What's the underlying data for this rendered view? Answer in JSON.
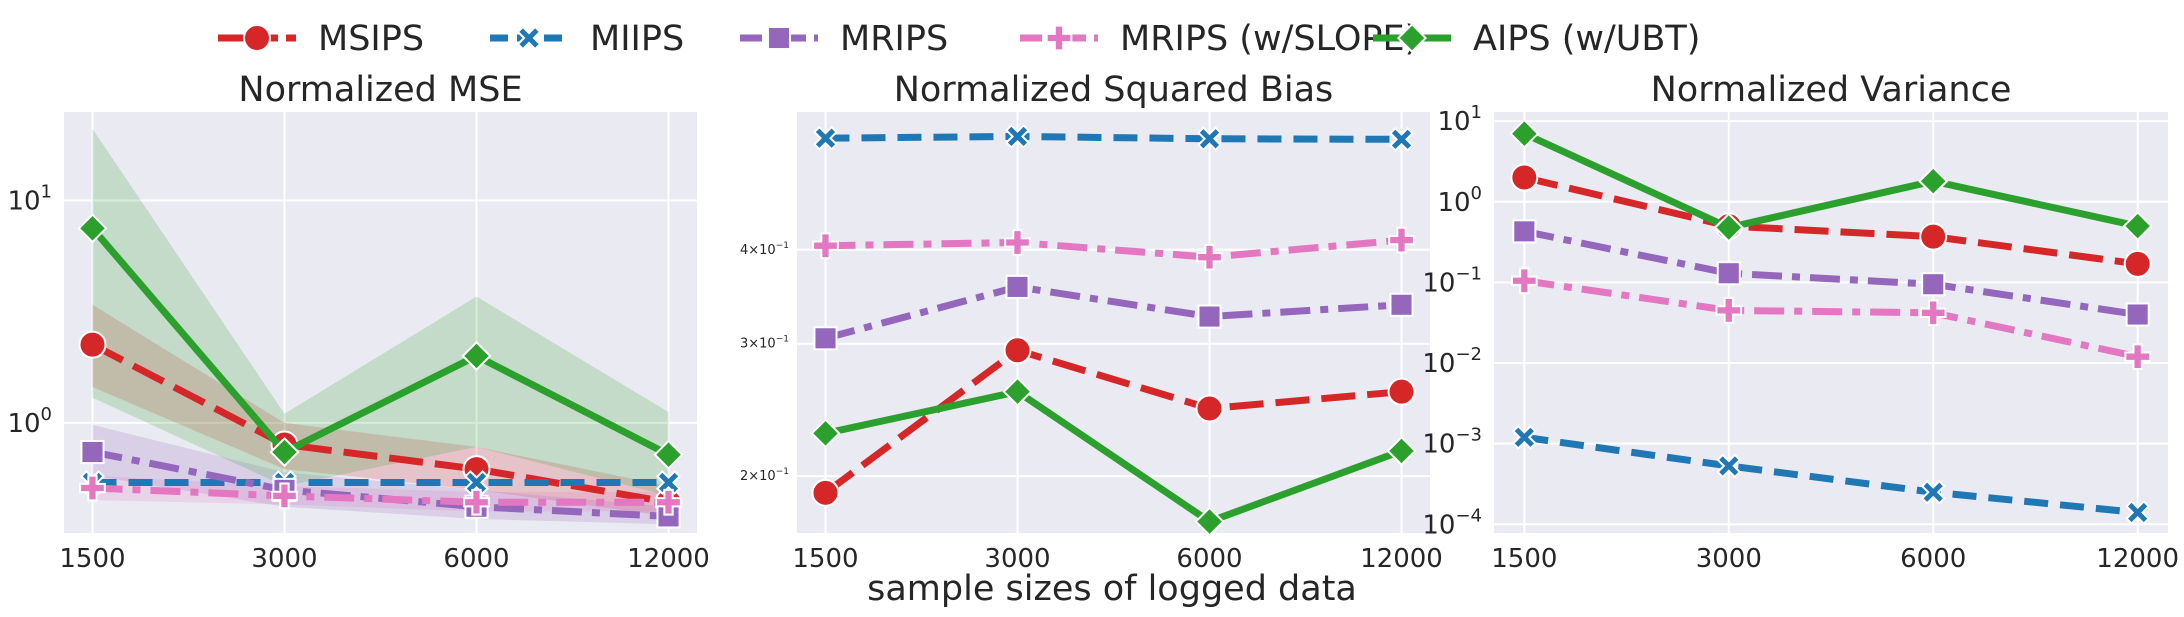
{
  "legend": [
    {
      "name": "MSIPS",
      "color": "#d62728",
      "marker": "circle",
      "dash": "long-dash"
    },
    {
      "name": "MIIPS",
      "color": "#1f77b4",
      "marker": "x",
      "dash": "dash"
    },
    {
      "name": "MRIPS",
      "color": "#9467bd",
      "marker": "square",
      "dash": "dash-dot"
    },
    {
      "name": "MRIPS (w/SLOPE)",
      "color": "#e377c2",
      "marker": "plus",
      "dash": "dash-dot"
    },
    {
      "name": "AIPS (w/UBT)",
      "color": "#2ca02c",
      "marker": "diamond",
      "dash": "solid"
    }
  ],
  "xlabel": "sample sizes of logged data",
  "chart_data": [
    {
      "type": "line",
      "title": "Normalized MSE",
      "x": [
        "1500",
        "3000",
        "6000",
        "12000"
      ],
      "yscale": "log",
      "ylim": [
        0.32,
        25
      ],
      "yticks": [
        {
          "value": 1,
          "base": "10",
          "exp": "0"
        },
        {
          "value": 10,
          "base": "10",
          "exp": "1"
        }
      ],
      "grid": true,
      "series": [
        {
          "name": "MSIPS",
          "values": [
            2.25,
            0.8,
            0.62,
            0.44
          ],
          "band": [
            [
              1.45,
              3.4
            ],
            [
              0.62,
              1.0
            ],
            [
              0.5,
              0.78
            ],
            [
              0.38,
              0.52
            ]
          ]
        },
        {
          "name": "MIIPS",
          "values": [
            0.54,
            0.54,
            0.54,
            0.54
          ]
        },
        {
          "name": "MRIPS",
          "values": [
            0.74,
            0.5,
            0.42,
            0.38
          ],
          "band": [
            [
              0.58,
              0.98
            ],
            [
              0.42,
              0.6
            ],
            [
              0.37,
              0.5
            ],
            [
              0.35,
              0.42
            ]
          ]
        },
        {
          "name": "MRIPS (w/SLOPE)",
          "values": [
            0.51,
            0.47,
            0.44,
            0.44
          ],
          "band": [
            [
              0.45,
              0.58
            ],
            [
              0.43,
              0.52
            ],
            [
              0.4,
              0.49
            ],
            [
              0.4,
              0.49
            ]
          ]
        },
        {
          "name": "AIPS (w/UBT)",
          "values": [
            7.5,
            0.74,
            2.0,
            0.72
          ],
          "band": [
            [
              1.3,
              21
            ],
            [
              0.52,
              1.1
            ],
            [
              0.78,
              3.7
            ],
            [
              0.47,
              1.12
            ]
          ]
        }
      ]
    },
    {
      "type": "line",
      "title": "Normalized Squared Bias",
      "x": [
        "1500",
        "3000",
        "6000",
        "12000"
      ],
      "yscale": "log",
      "ylim": [
        0.168,
        0.61
      ],
      "yticks": [
        {
          "value": 0.2,
          "base": "2×10",
          "exp": "−1"
        },
        {
          "value": 0.3,
          "base": "3×10",
          "exp": "−1"
        },
        {
          "value": 0.4,
          "base": "4×10",
          "exp": "−1"
        }
      ],
      "grid": true,
      "series": [
        {
          "name": "MSIPS",
          "values": [
            0.19,
            0.294,
            0.246,
            0.259
          ]
        },
        {
          "name": "MIIPS",
          "values": [
            0.563,
            0.566,
            0.562,
            0.561
          ]
        },
        {
          "name": "MRIPS",
          "values": [
            0.305,
            0.357,
            0.326,
            0.338
          ]
        },
        {
          "name": "MRIPS (w/SLOPE)",
          "values": [
            0.405,
            0.409,
            0.391,
            0.412
          ]
        },
        {
          "name": "AIPS (w/UBT)",
          "values": [
            0.228,
            0.259,
            0.174,
            0.216
          ]
        }
      ]
    },
    {
      "type": "line",
      "title": "Normalized Variance",
      "x": [
        "1500",
        "3000",
        "6000",
        "12000"
      ],
      "yscale": "log",
      "ylim": [
        7.8e-05,
        13
      ],
      "yticks": [
        {
          "value": 0.0001,
          "base": "10",
          "exp": "−4"
        },
        {
          "value": 0.001,
          "base": "10",
          "exp": "−3"
        },
        {
          "value": 0.01,
          "base": "10",
          "exp": "−2"
        },
        {
          "value": 0.1,
          "base": "10",
          "exp": "−1"
        },
        {
          "value": 1,
          "base": "10",
          "exp": "0"
        },
        {
          "value": 10,
          "base": "10",
          "exp": "1"
        }
      ],
      "grid": true,
      "series": [
        {
          "name": "MSIPS",
          "values": [
            2.0,
            0.5,
            0.37,
            0.17
          ]
        },
        {
          "name": "MIIPS",
          "values": [
            0.0012,
            0.00053,
            0.00025,
            0.00014
          ]
        },
        {
          "name": "MRIPS",
          "values": [
            0.43,
            0.13,
            0.095,
            0.04
          ]
        },
        {
          "name": "MRIPS (w/SLOPE)",
          "values": [
            0.105,
            0.045,
            0.042,
            0.012
          ]
        },
        {
          "name": "AIPS (w/UBT)",
          "values": [
            7.0,
            0.48,
            1.8,
            0.5
          ]
        }
      ]
    }
  ]
}
